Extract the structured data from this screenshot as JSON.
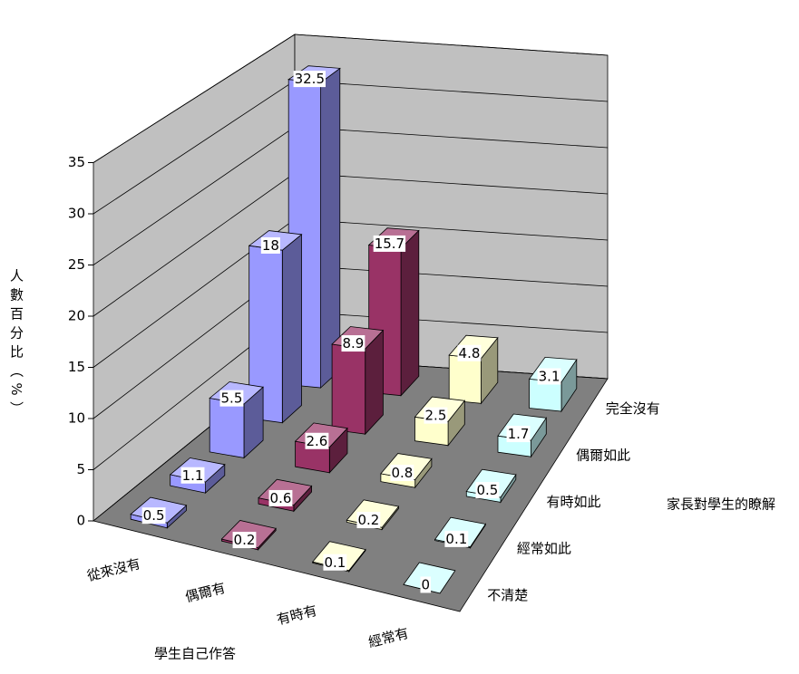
{
  "chart_data": {
    "type": "bar3d",
    "xlabel": "學生自己作答",
    "zlabel": "家長對學生的瞭解",
    "ylabel": "人數百分比（%）",
    "categories": [
      "不清楚",
      "經常如此",
      "有時如此",
      "偶爾如此",
      "完全沒有"
    ],
    "series": [
      {
        "name": "從來沒有",
        "color": "#9999FF",
        "values": [
          0.5,
          1.1,
          5.5,
          18,
          32.5
        ]
      },
      {
        "name": "偶爾有",
        "color": "#993366",
        "values": [
          0.2,
          0.6,
          2.6,
          8.9,
          15.7
        ]
      },
      {
        "name": "有時有",
        "color": "#FFFFCC",
        "values": [
          0.1,
          0.2,
          0.8,
          2.5,
          4.8
        ]
      },
      {
        "name": "經常有",
        "color": "#CCFFFF",
        "values": [
          0,
          0.1,
          0.5,
          1.7,
          3.1
        ]
      }
    ],
    "ylim": [
      0,
      35
    ],
    "yticks": [
      0,
      5,
      10,
      15,
      20,
      25,
      30,
      35
    ],
    "grid": true
  }
}
